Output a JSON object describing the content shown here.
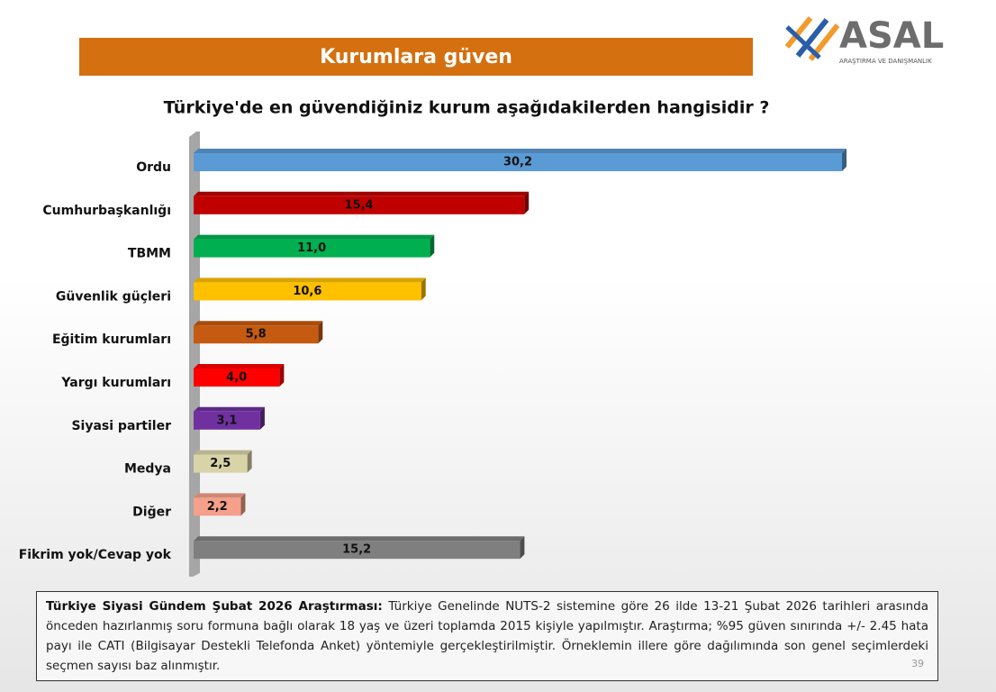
{
  "logo": {
    "name": "ASAL",
    "tagline": "ARAŞTIRMA VE DANIŞMANLIK"
  },
  "chart_data": {
    "type": "bar",
    "orientation": "horizontal",
    "title": "Kurumlara güven",
    "subtitle": "Türkiye'de en güvendiğiniz kurum aşağıdakilerden hangisidir ?",
    "categories": [
      "Ordu",
      "Cumhurbaşkanlığı",
      "TBMM",
      "Güvenlik güçleri",
      "Eğitim kurumları",
      "Yargı kurumları",
      "Siyasi partiler",
      "Medya",
      "Diğer",
      "Fikrim yok/Cevap yok"
    ],
    "values": [
      30.2,
      15.4,
      11.0,
      10.6,
      5.8,
      4.0,
      3.1,
      2.5,
      2.2,
      15.2
    ],
    "value_labels": [
      "30,2",
      "15,4",
      "11,0",
      "10,6",
      "5,8",
      "4,0",
      "3,1",
      "2,5",
      "2,2",
      "15,2"
    ],
    "colors": [
      "#5b9bd5",
      "#c00000",
      "#00b050",
      "#ffc000",
      "#c55a11",
      "#ff0000",
      "#7030a0",
      "#d9d3a8",
      "#f4a08a",
      "#7f7f7f"
    ]
  },
  "footnote": {
    "lead": "Türkiye Siyasi Gündem Şubat 2026 Araştırması:",
    "text": "Türkiye Genelinde NUTS-2 sistemine göre 26 ilde 13-21 Şubat 2026 tarihleri arasında önceden hazırlanmış soru formuna bağlı olarak 18 yaş ve üzeri toplamda 2015 kişiyle yapılmıştır. Araştırma; %95 güven sınırında +/- 2.45 hata payı ile CATI (Bilgisayar Destekli Telefonda Anket) yöntemiyle gerçekleştirilmiştir. Örneklemin illere göre dağılımında son genel seçimlerdeki seçmen sayısı baz alınmıştır."
  },
  "page_number": "39"
}
